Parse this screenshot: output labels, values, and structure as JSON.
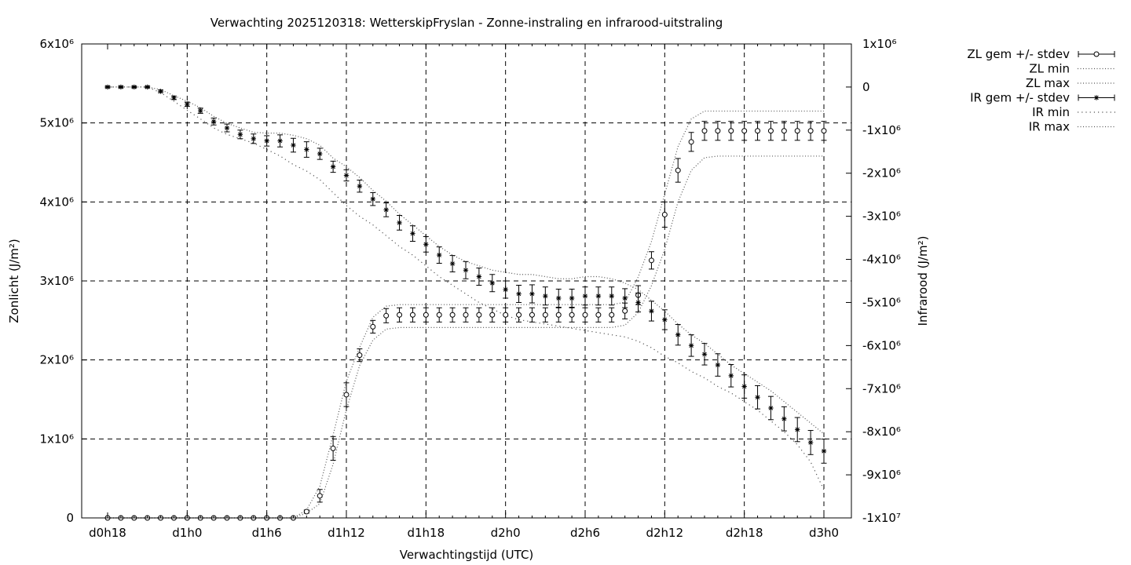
{
  "chart_data": {
    "type": "scatter",
    "title": "Verwachting 2025120318: WetterskipFryslan - Zonne-instraling en infrarood-uitstraling",
    "xlabel": "Verwachtingstijd (UTC)",
    "ylabel_left": "Zonlicht (J/m²)",
    "ylabel_right": "Infrarood (J/m²)",
    "x_ticks": [
      "d0h18",
      "d1h0",
      "d1h6",
      "d1h12",
      "d1h18",
      "d2h0",
      "d2h6",
      "d2h12",
      "d2h18",
      "d3h0"
    ],
    "xlim": [
      18,
      72
    ],
    "ylim_left": [
      0,
      6000000
    ],
    "ylim_right": [
      -10000000,
      1000000
    ],
    "y_ticks_left": [
      {
        "v": 0,
        "label": "0"
      },
      {
        "v": 1000000,
        "label": "1x10⁶"
      },
      {
        "v": 2000000,
        "label": "2x10⁶"
      },
      {
        "v": 3000000,
        "label": "3x10⁶"
      },
      {
        "v": 4000000,
        "label": "4x10⁶"
      },
      {
        "v": 5000000,
        "label": "5x10⁶"
      },
      {
        "v": 6000000,
        "label": "6x10⁶"
      }
    ],
    "y_ticks_right": [
      {
        "v": 1000000,
        "label": "1x10⁶"
      },
      {
        "v": 0,
        "label": "0"
      },
      {
        "v": -1000000,
        "label": "-1x10⁶"
      },
      {
        "v": -2000000,
        "label": "-2x10⁶"
      },
      {
        "v": -3000000,
        "label": "-3x10⁶"
      },
      {
        "v": -4000000,
        "label": "-4x10⁶"
      },
      {
        "v": -5000000,
        "label": "-5x10⁶"
      },
      {
        "v": -6000000,
        "label": "-6x10⁶"
      },
      {
        "v": -7000000,
        "label": "-7x10⁶"
      },
      {
        "v": -8000000,
        "label": "-8x10⁶"
      },
      {
        "v": -9000000,
        "label": "-9x10⁶"
      },
      {
        "v": -10000000,
        "label": "-1x10⁷"
      }
    ],
    "grid": true,
    "legend_position": "top-right outside",
    "legend": [
      "ZL gem +/- stdev",
      "ZL min",
      "ZL max",
      "IR gem +/- stdev",
      "IR min",
      "IR max"
    ],
    "x": [
      18,
      19,
      20,
      21,
      22,
      23,
      24,
      25,
      26,
      27,
      28,
      29,
      30,
      31,
      32,
      33,
      34,
      35,
      36,
      37,
      38,
      39,
      40,
      41,
      42,
      43,
      44,
      45,
      46,
      47,
      48,
      49,
      50,
      51,
      52,
      53,
      54,
      55,
      56,
      57,
      58,
      59,
      60,
      61,
      62,
      63,
      64,
      65,
      66,
      67,
      68,
      69,
      70,
      71,
      72
    ],
    "series": [
      {
        "name": "ZL gem +/- stdev",
        "axis": "left",
        "marker": "circle",
        "values": [
          0,
          0,
          0,
          0,
          0,
          0,
          0,
          0,
          0,
          0,
          0,
          0,
          0,
          0,
          0,
          80000,
          280000,
          880000,
          1560000,
          2060000,
          2420000,
          2560000,
          2570000,
          2570000,
          2570000,
          2570000,
          2570000,
          2570000,
          2570000,
          2570000,
          2570000,
          2570000,
          2570000,
          2570000,
          2570000,
          2570000,
          2570000,
          2570000,
          2570000,
          2620000,
          2820000,
          3260000,
          3840000,
          4400000,
          4760000,
          4900000,
          4900000,
          4900000,
          4900000,
          4900000,
          4900000,
          4900000,
          4900000,
          4900000,
          4900000
        ],
        "stdev": [
          0,
          0,
          0,
          0,
          0,
          0,
          0,
          0,
          0,
          0,
          0,
          0,
          0,
          0,
          0,
          20000,
          80000,
          150000,
          150000,
          80000,
          80000,
          90000,
          90000,
          90000,
          90000,
          90000,
          90000,
          90000,
          90000,
          90000,
          90000,
          90000,
          90000,
          90000,
          90000,
          90000,
          90000,
          90000,
          90000,
          100000,
          120000,
          110000,
          160000,
          150000,
          120000,
          120000,
          120000,
          120000,
          120000,
          120000,
          120000,
          120000,
          120000,
          120000,
          120000
        ]
      },
      {
        "name": "ZL min",
        "axis": "left",
        "line": "dotted",
        "values": [
          0,
          0,
          0,
          0,
          0,
          0,
          0,
          0,
          0,
          0,
          0,
          0,
          0,
          0,
          0,
          60000,
          180000,
          680000,
          1370000,
          1930000,
          2250000,
          2390000,
          2410000,
          2410000,
          2410000,
          2410000,
          2410000,
          2410000,
          2410000,
          2410000,
          2410000,
          2410000,
          2410000,
          2410000,
          2410000,
          2410000,
          2410000,
          2410000,
          2410000,
          2440000,
          2600000,
          2940000,
          3400000,
          4000000,
          4400000,
          4560000,
          4580000,
          4580000,
          4580000,
          4580000,
          4580000,
          4580000,
          4580000,
          4580000,
          4580000
        ]
      },
      {
        "name": "ZL max",
        "axis": "left",
        "line": "dotted",
        "values": [
          0,
          0,
          0,
          0,
          0,
          0,
          0,
          0,
          0,
          0,
          0,
          0,
          0,
          0,
          0,
          100000,
          400000,
          1050000,
          1730000,
          2160000,
          2540000,
          2680000,
          2700000,
          2700000,
          2700000,
          2700000,
          2700000,
          2700000,
          2700000,
          2700000,
          2700000,
          2700000,
          2700000,
          2700000,
          2700000,
          2700000,
          2700000,
          2700000,
          2700000,
          2730000,
          3050000,
          3500000,
          4100000,
          4700000,
          5050000,
          5150000,
          5150000,
          5150000,
          5150000,
          5150000,
          5150000,
          5150000,
          5150000,
          5150000,
          5150000
        ]
      },
      {
        "name": "IR gem +/- stdev",
        "axis": "right",
        "marker": "star",
        "values": [
          0,
          0,
          0,
          0,
          -100000,
          -250000,
          -400000,
          -550000,
          -800000,
          -950000,
          -1100000,
          -1200000,
          -1250000,
          -1250000,
          -1350000,
          -1450000,
          -1550000,
          -1850000,
          -2050000,
          -2300000,
          -2600000,
          -2850000,
          -3150000,
          -3400000,
          -3650000,
          -3900000,
          -4100000,
          -4250000,
          -4400000,
          -4550000,
          -4700000,
          -4800000,
          -4800000,
          -4850000,
          -4900000,
          -4900000,
          -4850000,
          -4850000,
          -4850000,
          -4900000,
          -5000000,
          -5200000,
          -5400000,
          -5750000,
          -6000000,
          -6200000,
          -6450000,
          -6700000,
          -6950000,
          -7200000,
          -7450000,
          -7700000,
          -7950000,
          -8250000,
          -8450000
        ],
        "stdev": [
          20000,
          20000,
          20000,
          20000,
          30000,
          40000,
          50000,
          60000,
          80000,
          90000,
          100000,
          110000,
          120000,
          140000,
          160000,
          180000,
          130000,
          130000,
          130000,
          140000,
          150000,
          160000,
          170000,
          180000,
          180000,
          190000,
          190000,
          200000,
          200000,
          200000,
          200000,
          200000,
          210000,
          210000,
          210000,
          210000,
          210000,
          210000,
          210000,
          220000,
          220000,
          230000,
          230000,
          240000,
          250000,
          250000,
          260000,
          260000,
          270000,
          270000,
          270000,
          280000,
          280000,
          280000,
          280000
        ]
      },
      {
        "name": "IR min",
        "axis": "right",
        "line": "dotted",
        "values": [
          0,
          0,
          0,
          0,
          -130000,
          -330000,
          -540000,
          -740000,
          -950000,
          -1100000,
          -1200000,
          -1300000,
          -1450000,
          -1600000,
          -1800000,
          -1950000,
          -2150000,
          -2450000,
          -2750000,
          -3000000,
          -3200000,
          -3450000,
          -3700000,
          -3900000,
          -4150000,
          -4400000,
          -4600000,
          -4800000,
          -5000000,
          -5150000,
          -5300000,
          -5400000,
          -5450000,
          -5500000,
          -5550000,
          -5600000,
          -5650000,
          -5700000,
          -5750000,
          -5800000,
          -5900000,
          -6050000,
          -6250000,
          -6400000,
          -6600000,
          -6750000,
          -6950000,
          -7100000,
          -7300000,
          -7500000,
          -7750000,
          -8000000,
          -8300000,
          -8700000,
          -9350000
        ]
      },
      {
        "name": "IR max",
        "axis": "right",
        "line": "dotted",
        "values": [
          0,
          0,
          0,
          0,
          -60000,
          -200000,
          -330000,
          -480000,
          -680000,
          -840000,
          -950000,
          -1050000,
          -1070000,
          -1070000,
          -1120000,
          -1200000,
          -1350000,
          -1650000,
          -1850000,
          -2100000,
          -2400000,
          -2650000,
          -2950000,
          -3200000,
          -3450000,
          -3700000,
          -3900000,
          -4050000,
          -4150000,
          -4250000,
          -4300000,
          -4350000,
          -4350000,
          -4400000,
          -4450000,
          -4450000,
          -4400000,
          -4400000,
          -4450000,
          -4550000,
          -4700000,
          -4950000,
          -5200000,
          -5500000,
          -5750000,
          -5950000,
          -6200000,
          -6450000,
          -6650000,
          -6850000,
          -7050000,
          -7300000,
          -7550000,
          -7800000,
          -8050000
        ]
      }
    ]
  }
}
